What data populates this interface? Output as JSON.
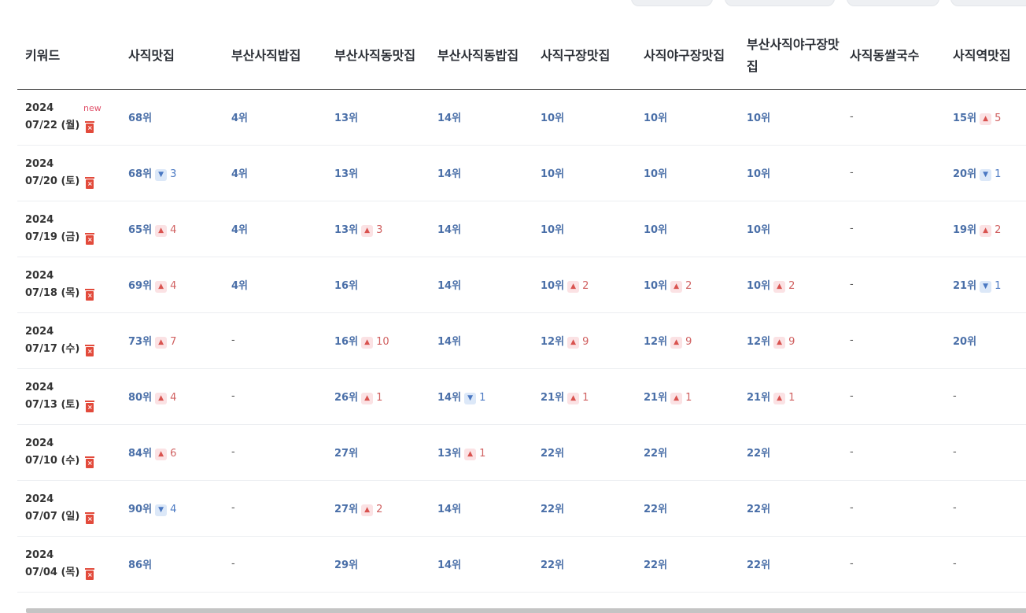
{
  "columns": [
    "키워드",
    "사직맛집",
    "부산사직밥집",
    "부산사직동맛집",
    "부산사직동밥집",
    "사직구장맛집",
    "사직야구장맛집",
    "부산사직야구장맛집",
    "사직동쌀국수",
    "사직역맛집"
  ],
  "rows": [
    {
      "year": "2024",
      "date": "07/22 (월)",
      "badge": "new",
      "cells": [
        {
          "rank": "68위"
        },
        {
          "rank": "4위"
        },
        {
          "rank": "13위"
        },
        {
          "rank": "14위"
        },
        {
          "rank": "10위"
        },
        {
          "rank": "10위"
        },
        {
          "rank": "10위"
        },
        {
          "rank": "-"
        },
        {
          "rank": "15위",
          "dir": "up",
          "change": "5"
        }
      ]
    },
    {
      "year": "2024",
      "date": "07/20 (토)",
      "cells": [
        {
          "rank": "68위",
          "dir": "down",
          "change": "3"
        },
        {
          "rank": "4위"
        },
        {
          "rank": "13위"
        },
        {
          "rank": "14위"
        },
        {
          "rank": "10위"
        },
        {
          "rank": "10위"
        },
        {
          "rank": "10위"
        },
        {
          "rank": "-"
        },
        {
          "rank": "20위",
          "dir": "down",
          "change": "1"
        }
      ]
    },
    {
      "year": "2024",
      "date": "07/19 (금)",
      "cells": [
        {
          "rank": "65위",
          "dir": "up",
          "change": "4"
        },
        {
          "rank": "4위"
        },
        {
          "rank": "13위",
          "dir": "up",
          "change": "3"
        },
        {
          "rank": "14위"
        },
        {
          "rank": "10위"
        },
        {
          "rank": "10위"
        },
        {
          "rank": "10위"
        },
        {
          "rank": "-"
        },
        {
          "rank": "19위",
          "dir": "up",
          "change": "2"
        }
      ]
    },
    {
      "year": "2024",
      "date": "07/18 (목)",
      "cells": [
        {
          "rank": "69위",
          "dir": "up",
          "change": "4"
        },
        {
          "rank": "4위"
        },
        {
          "rank": "16위"
        },
        {
          "rank": "14위"
        },
        {
          "rank": "10위",
          "dir": "up",
          "change": "2"
        },
        {
          "rank": "10위",
          "dir": "up",
          "change": "2"
        },
        {
          "rank": "10위",
          "dir": "up",
          "change": "2"
        },
        {
          "rank": "-"
        },
        {
          "rank": "21위",
          "dir": "down",
          "change": "1"
        }
      ]
    },
    {
      "year": "2024",
      "date": "07/17 (수)",
      "cells": [
        {
          "rank": "73위",
          "dir": "up",
          "change": "7"
        },
        {
          "rank": "-"
        },
        {
          "rank": "16위",
          "dir": "up",
          "change": "10"
        },
        {
          "rank": "14위"
        },
        {
          "rank": "12위",
          "dir": "up",
          "change": "9"
        },
        {
          "rank": "12위",
          "dir": "up",
          "change": "9"
        },
        {
          "rank": "12위",
          "dir": "up",
          "change": "9"
        },
        {
          "rank": "-"
        },
        {
          "rank": "20위"
        }
      ]
    },
    {
      "year": "2024",
      "date": "07/13 (토)",
      "cells": [
        {
          "rank": "80위",
          "dir": "up",
          "change": "4"
        },
        {
          "rank": "-"
        },
        {
          "rank": "26위",
          "dir": "up",
          "change": "1"
        },
        {
          "rank": "14위",
          "dir": "down",
          "change": "1"
        },
        {
          "rank": "21위",
          "dir": "up",
          "change": "1"
        },
        {
          "rank": "21위",
          "dir": "up",
          "change": "1"
        },
        {
          "rank": "21위",
          "dir": "up",
          "change": "1"
        },
        {
          "rank": "-"
        },
        {
          "rank": "-"
        }
      ]
    },
    {
      "year": "2024",
      "date": "07/10 (수)",
      "cells": [
        {
          "rank": "84위",
          "dir": "up",
          "change": "6"
        },
        {
          "rank": "-"
        },
        {
          "rank": "27위"
        },
        {
          "rank": "13위",
          "dir": "up",
          "change": "1"
        },
        {
          "rank": "22위"
        },
        {
          "rank": "22위"
        },
        {
          "rank": "22위"
        },
        {
          "rank": "-"
        },
        {
          "rank": "-"
        }
      ]
    },
    {
      "year": "2024",
      "date": "07/07 (일)",
      "cells": [
        {
          "rank": "90위",
          "dir": "down",
          "change": "4"
        },
        {
          "rank": "-"
        },
        {
          "rank": "27위",
          "dir": "up",
          "change": "2"
        },
        {
          "rank": "14위"
        },
        {
          "rank": "22위"
        },
        {
          "rank": "22위"
        },
        {
          "rank": "22위"
        },
        {
          "rank": "-"
        },
        {
          "rank": "-"
        }
      ]
    },
    {
      "year": "2024",
      "date": "07/04 (목)",
      "cells": [
        {
          "rank": "86위"
        },
        {
          "rank": "-"
        },
        {
          "rank": "29위"
        },
        {
          "rank": "14위"
        },
        {
          "rank": "22위"
        },
        {
          "rank": "22위"
        },
        {
          "rank": "22위"
        },
        {
          "rank": "-"
        },
        {
          "rank": "-"
        }
      ]
    }
  ],
  "icons": {
    "delete": "trash-icon",
    "up": "triangle-up-icon",
    "down": "triangle-down-icon"
  },
  "colors": {
    "rank": "#4a6fa8",
    "up": "#d9534f",
    "down": "#4a78c2",
    "new": "#e0516a",
    "delete": "#e24a3b"
  }
}
